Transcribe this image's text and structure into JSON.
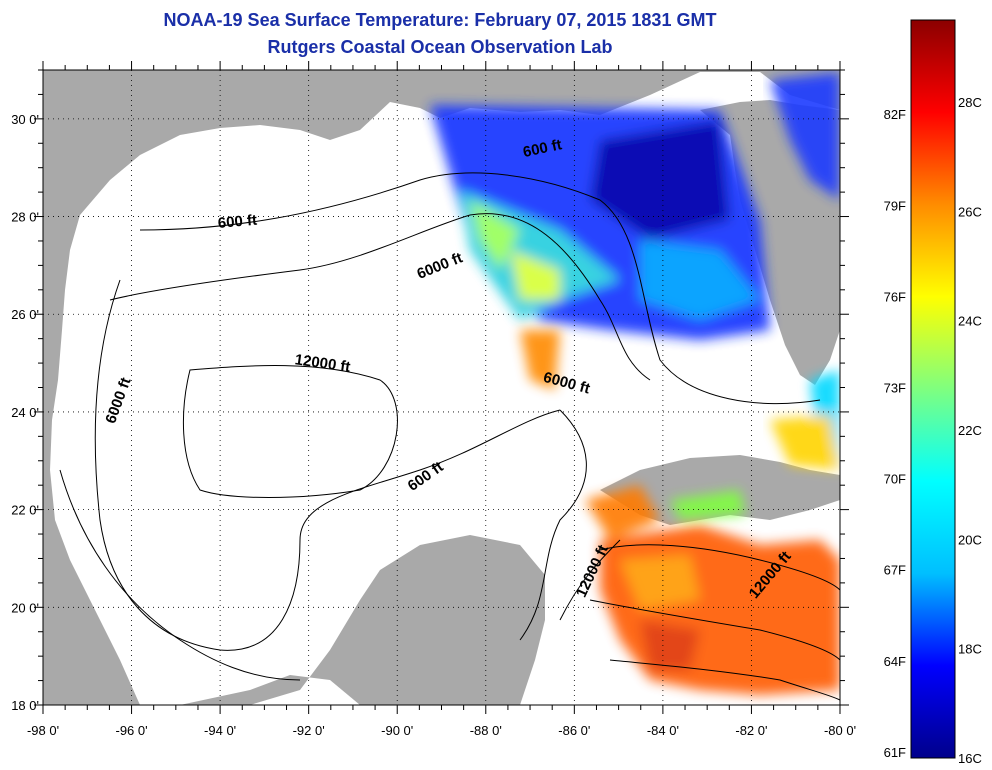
{
  "header": {
    "title": "NOAA-19 Sea Surface Temperature:  February 07, 2015 1831 GMT",
    "subtitle": "Rutgers Coastal Ocean Observation Lab"
  },
  "map": {
    "lon_range": [
      -98,
      -80
    ],
    "lat_range": [
      18,
      31
    ],
    "x_ticks": [
      "-98 0'",
      "-96 0'",
      "-94 0'",
      "-92 0'",
      "-90 0'",
      "-88 0'",
      "-86 0'",
      "-84 0'",
      "-82 0'",
      "-80 0'"
    ],
    "y_ticks": [
      "18 0'",
      "20 0'",
      "22 0'",
      "24 0'",
      "26 0'",
      "28 0'",
      "30 0'"
    ],
    "grid": "dotted",
    "land_color": "#a9a9a9",
    "ocean_color": "#ffffff",
    "contour_labels": [
      {
        "text": "600 ft",
        "lon": -93.6,
        "lat": 27.8
      },
      {
        "text": "6000 ft",
        "lon": -89.0,
        "lat": 26.9
      },
      {
        "text": "600 ft",
        "lon": -86.7,
        "lat": 29.3
      },
      {
        "text": "6000 ft",
        "lon": -96.2,
        "lat": 24.2
      },
      {
        "text": "12000 ft",
        "lon": -91.7,
        "lat": 24.9
      },
      {
        "text": "6000 ft",
        "lon": -86.2,
        "lat": 24.5
      },
      {
        "text": "600 ft",
        "lon": -89.3,
        "lat": 22.6
      },
      {
        "text": "12000 ft",
        "lon": -85.5,
        "lat": 20.7
      },
      {
        "text": "12000 ft",
        "lon": -81.5,
        "lat": 20.6
      }
    ]
  },
  "colorbar": {
    "range_c": [
      16,
      29.5
    ],
    "f_labels": [
      "61F",
      "64F",
      "67F",
      "70F",
      "73F",
      "76F",
      "79F",
      "82F"
    ],
    "c_labels": [
      "16C",
      "18C",
      "20C",
      "22C",
      "24C",
      "26C",
      "28C"
    ],
    "colors": [
      "#00008b",
      "#0000ff",
      "#00bfff",
      "#00ffff",
      "#7fff7f",
      "#ffff00",
      "#ff8c00",
      "#ff0000",
      "#8b0000"
    ]
  }
}
